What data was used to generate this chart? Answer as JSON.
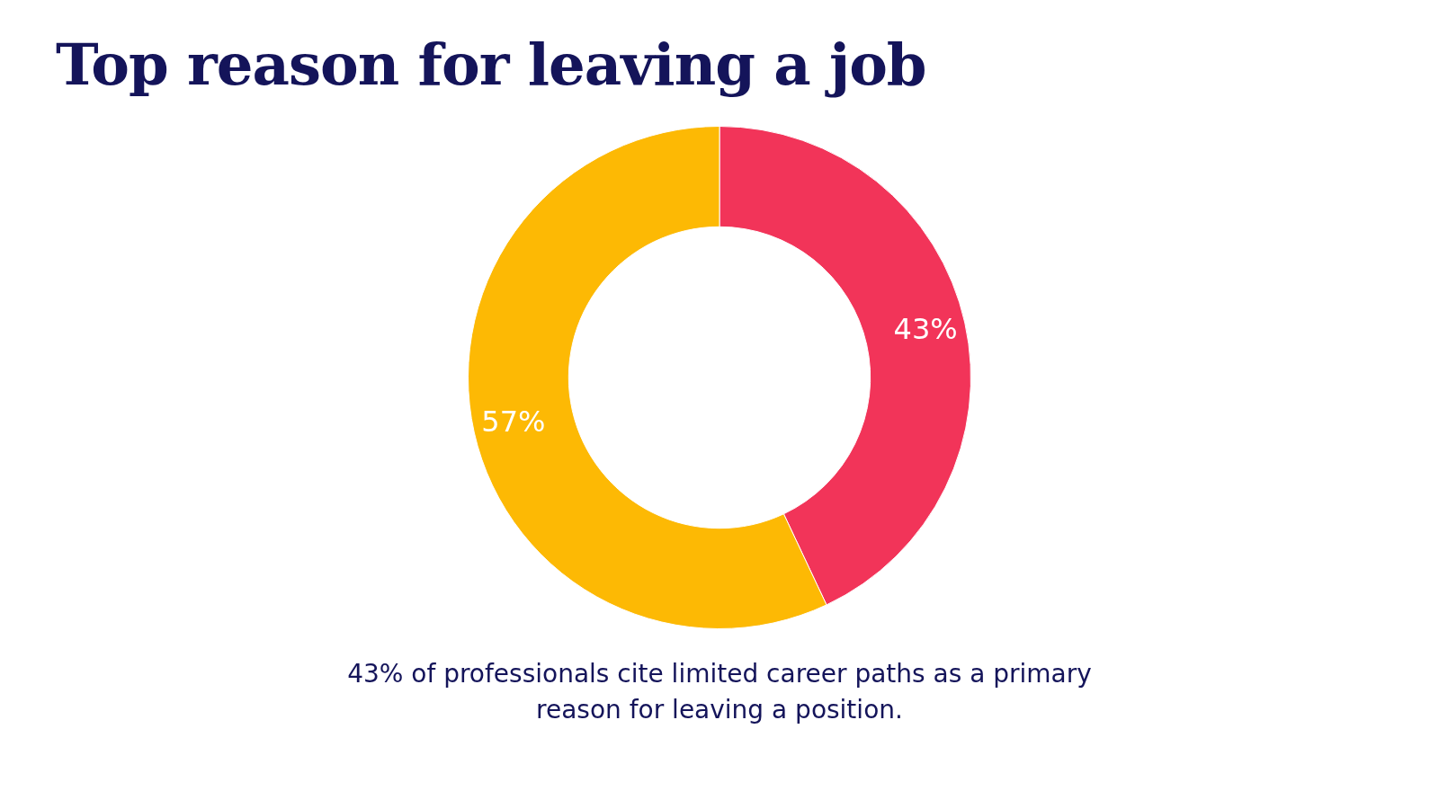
{
  "chart_data": {
    "type": "donut",
    "title": "Top reason for leaving a job",
    "categories": [
      null,
      null
    ],
    "values": [
      43,
      57
    ],
    "colors": [
      "#f23459",
      "#fdb904"
    ],
    "value_labels": [
      "43%",
      "57%"
    ],
    "legend": false,
    "annotations": [
      "43% of professionals cite limited career paths as a primary reason for leaving a position."
    ]
  }
}
